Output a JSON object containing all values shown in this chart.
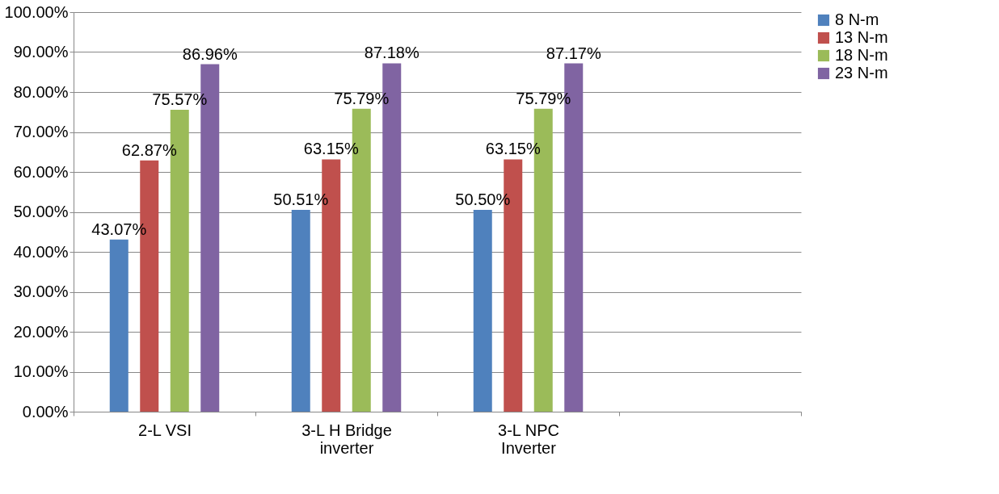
{
  "chart_data": {
    "type": "bar",
    "categories": [
      "2-L VSI",
      "3-L H Bridge inverter",
      "3-L NPC Inverter",
      null
    ],
    "series": [
      {
        "name": "8 N-m",
        "color": "#4f81bd",
        "values": [
          43.07,
          50.51,
          50.5,
          null
        ],
        "value_labels": [
          "43.07%",
          "50.51%",
          "50.50%",
          null
        ]
      },
      {
        "name": "13 N-m",
        "color": "#c0504d",
        "values": [
          62.87,
          63.15,
          63.15,
          null
        ],
        "value_labels": [
          "62.87%",
          "63.15%",
          "63.15%",
          null
        ]
      },
      {
        "name": "18 N-m",
        "color": "#9bbb59",
        "values": [
          75.57,
          75.79,
          75.79,
          null
        ],
        "value_labels": [
          "75.57%",
          "75.79%",
          "75.79%",
          null
        ]
      },
      {
        "name": "23 N-m",
        "color": "#8064a2",
        "values": [
          86.96,
          87.18,
          87.17,
          null
        ],
        "value_labels": [
          "86.96%",
          "87.18%",
          "87.17%",
          null
        ]
      }
    ],
    "ylim": [
      0,
      100
    ],
    "yticks": [
      {
        "value": 0,
        "label": "0.00%"
      },
      {
        "value": 10,
        "label": "10.00%"
      },
      {
        "value": 20,
        "label": "20.00%"
      },
      {
        "value": 30,
        "label": "30.00%"
      },
      {
        "value": 40,
        "label": "40.00%"
      },
      {
        "value": 50,
        "label": "50.00%"
      },
      {
        "value": 60,
        "label": "60.00%"
      },
      {
        "value": 70,
        "label": "70.00%"
      },
      {
        "value": 80,
        "label": "80.00%"
      },
      {
        "value": 90,
        "label": "90.00%"
      },
      {
        "value": 100,
        "label": "100.00%"
      }
    ],
    "grid": "y",
    "legend": "right"
  }
}
